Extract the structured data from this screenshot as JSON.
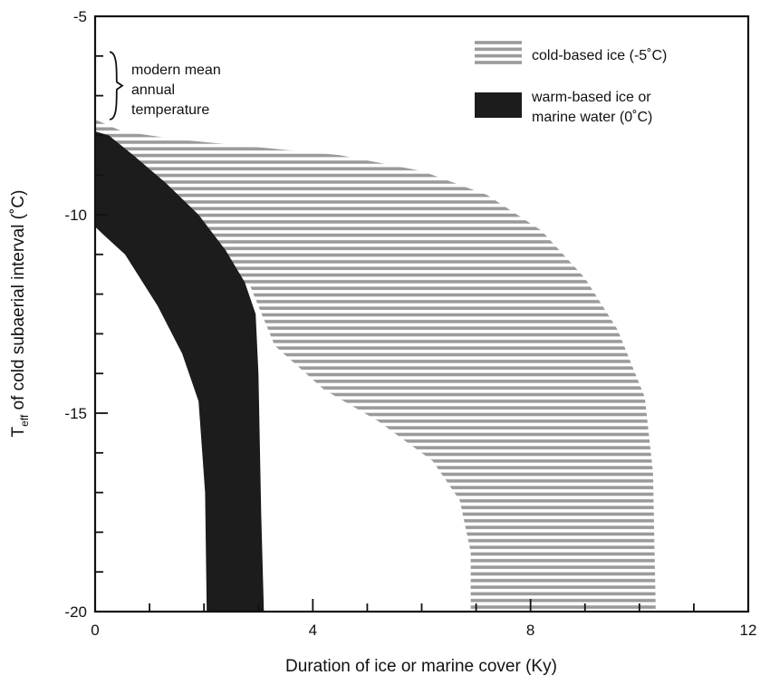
{
  "chart_data": {
    "type": "area",
    "xlabel": "Duration of ice or marine cover (Ky)",
    "ylabel_main": "T",
    "ylabel_sub": "eff",
    "ylabel_rest": " of cold subaerial interval (˚C)",
    "xlim": [
      0,
      12
    ],
    "ylim": [
      -20,
      -5
    ],
    "x_ticks": [
      0,
      4,
      8,
      12
    ],
    "x_tick_labels": [
      "0",
      "4",
      "8",
      "12"
    ],
    "x_minor_step": 1,
    "y_ticks": [
      -5,
      -10,
      -15,
      -20
    ],
    "y_tick_labels": [
      "-5",
      "-10",
      "-15",
      "-20"
    ],
    "y_minor_step": 1,
    "grid": false,
    "legend_position": "top-right",
    "annotation": {
      "lines": [
        "modern mean",
        "annual",
        "temperature"
      ],
      "y_range": [
        -7.6,
        -5.9
      ]
    },
    "series": [
      {
        "name": "cold-based ice (-5˚C)",
        "fill": "hatched",
        "color": "#9a9a9a",
        "boundary": [
          [
            0,
            -7.6
          ],
          [
            0.5,
            -7.9
          ],
          [
            1.5,
            -8.1
          ],
          [
            3,
            -8.3
          ],
          [
            4.5,
            -8.5
          ],
          [
            6,
            -8.9
          ],
          [
            7.2,
            -9.5
          ],
          [
            8.2,
            -10.4
          ],
          [
            9,
            -11.6
          ],
          [
            9.6,
            -12.9
          ],
          [
            10.1,
            -14.6
          ],
          [
            10.25,
            -16.5
          ],
          [
            10.3,
            -20
          ],
          [
            6.9,
            -20
          ],
          [
            6.9,
            -18.5
          ],
          [
            6.7,
            -17.2
          ],
          [
            6.2,
            -16.2
          ],
          [
            5.2,
            -15.2
          ],
          [
            4.2,
            -14.4
          ],
          [
            3.3,
            -13.3
          ],
          [
            2.85,
            -11.8
          ],
          [
            2.1,
            -11.3
          ],
          [
            1.3,
            -10.9
          ],
          [
            0.8,
            -10.6
          ],
          [
            0.35,
            -10.4
          ],
          [
            0,
            -10.3
          ]
        ]
      },
      {
        "name": "warm-based ice or marine water (0˚C)",
        "fill": "solid",
        "color": "#1c1c1c",
        "boundary": [
          [
            0,
            -7.9
          ],
          [
            0.25,
            -8.0
          ],
          [
            0.7,
            -8.5
          ],
          [
            1.3,
            -9.2
          ],
          [
            1.9,
            -10.0
          ],
          [
            2.4,
            -10.9
          ],
          [
            2.75,
            -11.7
          ],
          [
            2.95,
            -12.5
          ],
          [
            3.0,
            -14.0
          ],
          [
            3.05,
            -17.5
          ],
          [
            3.1,
            -20
          ],
          [
            2.05,
            -20
          ],
          [
            2.02,
            -17.0
          ],
          [
            1.9,
            -14.7
          ],
          [
            1.6,
            -13.5
          ],
          [
            1.15,
            -12.3
          ],
          [
            0.55,
            -11.0
          ],
          [
            0.15,
            -10.5
          ],
          [
            0,
            -10.3
          ]
        ]
      }
    ]
  }
}
